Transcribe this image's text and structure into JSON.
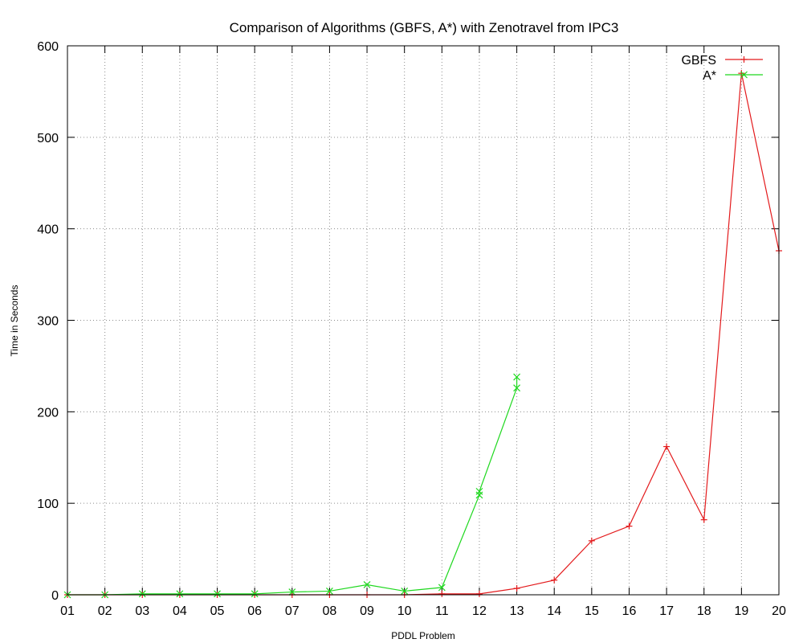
{
  "chart_data": {
    "type": "line",
    "title": "Comparison of Algorithms (GBFS, A*) with Zenotravel from IPC3",
    "xlabel": "PDDL Problem",
    "ylabel": "Time in Seconds",
    "categories": [
      "01",
      "02",
      "03",
      "04",
      "05",
      "06",
      "07",
      "08",
      "09",
      "10",
      "11",
      "12",
      "13",
      "14",
      "15",
      "16",
      "17",
      "18",
      "19",
      "20"
    ],
    "y_ticks": [
      "0",
      "100",
      "200",
      "300",
      "400",
      "500",
      "600"
    ],
    "ylim": [
      0,
      600
    ],
    "grid": true,
    "legend_position": "top-right",
    "series": [
      {
        "name": "GBFS",
        "color": "#e31a1c",
        "marker": "plus",
        "points": [
          {
            "x": "01",
            "y": 0
          },
          {
            "x": "02",
            "y": 0
          },
          {
            "x": "03",
            "y": 0
          },
          {
            "x": "04",
            "y": 0
          },
          {
            "x": "05",
            "y": 0
          },
          {
            "x": "06",
            "y": 0
          },
          {
            "x": "07",
            "y": 0
          },
          {
            "x": "08",
            "y": 0
          },
          {
            "x": "09",
            "y": 0
          },
          {
            "x": "10",
            "y": 0
          },
          {
            "x": "11",
            "y": 1
          },
          {
            "x": "12",
            "y": 1
          },
          {
            "x": "13",
            "y": 7
          },
          {
            "x": "14",
            "y": 16
          },
          {
            "x": "15",
            "y": 59
          },
          {
            "x": "16",
            "y": 75
          },
          {
            "x": "17",
            "y": 162
          },
          {
            "x": "18",
            "y": 82
          },
          {
            "x": "19",
            "y": 570
          },
          {
            "x": "20",
            "y": 376
          }
        ]
      },
      {
        "name": "A*",
        "color": "#1fd81f",
        "marker": "x",
        "points": [
          {
            "x": "01",
            "y": 0
          },
          {
            "x": "02",
            "y": 0
          },
          {
            "x": "03",
            "y": 1
          },
          {
            "x": "04",
            "y": 1
          },
          {
            "x": "05",
            "y": 1
          },
          {
            "x": "06",
            "y": 1
          },
          {
            "x": "07",
            "y": 3
          },
          {
            "x": "08",
            "y": 4
          },
          {
            "x": "09",
            "y": 11
          },
          {
            "x": "10",
            "y": 4
          },
          {
            "x": "11",
            "y": 8
          },
          {
            "x": "12",
            "y": 109
          },
          {
            "x": "12",
            "y": 113
          },
          {
            "x": "13",
            "y": 226
          },
          {
            "x": "13",
            "y": 238
          }
        ],
        "legend_marker_y": 568
      }
    ]
  }
}
